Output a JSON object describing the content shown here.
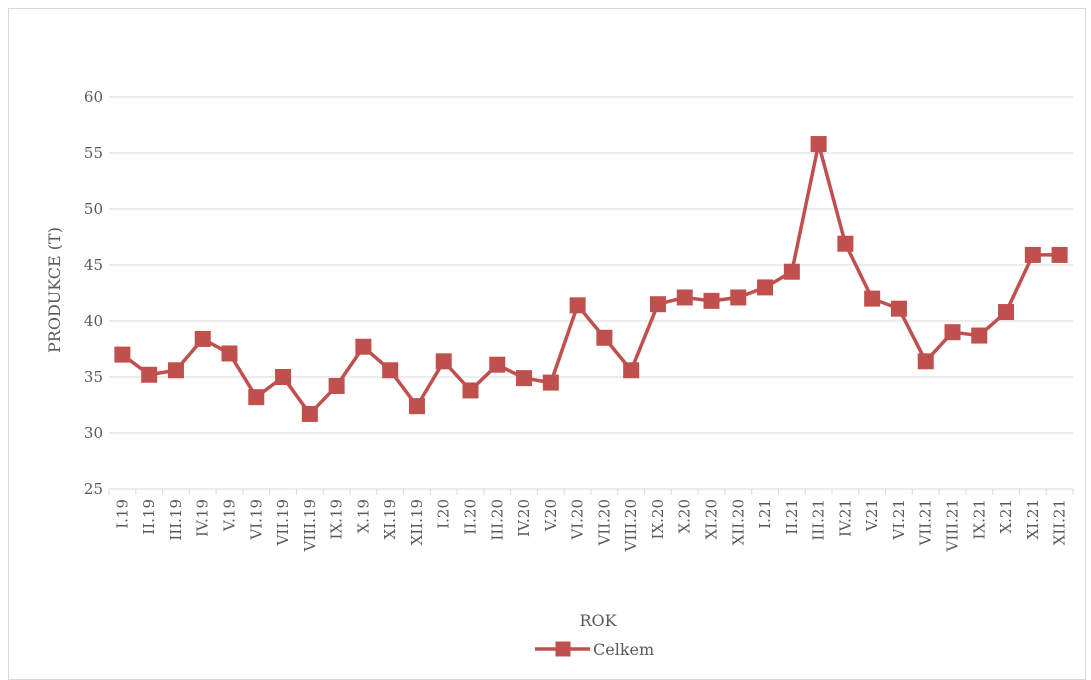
{
  "chart_data": {
    "type": "line",
    "title": "",
    "xlabel": "ROK",
    "ylabel": "PRODUKCE (T)",
    "ylim": [
      25,
      60
    ],
    "yticks": [
      "25",
      "30",
      "35",
      "40",
      "45",
      "50",
      "55",
      "60"
    ],
    "grid": "horizontal",
    "legend_position": "bottom",
    "categories": [
      "I.19",
      "II.19",
      "III.19",
      "IV.19",
      "V.19",
      "VI.19",
      "VII.19",
      "VIII.19",
      "IX.19",
      "X.19",
      "XI.19",
      "XII.19",
      "I.20",
      "II.20",
      "III.20",
      "IV.20",
      "V.20",
      "VI.20",
      "VII.20",
      "VIII.20",
      "IX.20",
      "X.20",
      "XI.20",
      "XII.20",
      "I.21",
      "II.21",
      "III.21",
      "IV.21",
      "V.21",
      "VI.21",
      "VII.21",
      "VIII.21",
      "IX.21",
      "X.21",
      "XI.21",
      "XII.21"
    ],
    "series": [
      {
        "name": "Celkem",
        "color": "#c0504d",
        "marker": "square",
        "values": [
          37.0,
          35.2,
          35.6,
          38.4,
          37.1,
          33.2,
          35.0,
          31.7,
          34.2,
          37.7,
          35.6,
          32.4,
          36.4,
          33.8,
          36.1,
          34.9,
          34.5,
          41.4,
          38.5,
          35.6,
          41.5,
          42.1,
          41.8,
          42.1,
          43.0,
          44.4,
          55.8,
          46.9,
          42.0,
          41.1,
          36.4,
          39.0,
          38.7,
          40.8,
          45.9,
          45.9
        ]
      }
    ]
  }
}
